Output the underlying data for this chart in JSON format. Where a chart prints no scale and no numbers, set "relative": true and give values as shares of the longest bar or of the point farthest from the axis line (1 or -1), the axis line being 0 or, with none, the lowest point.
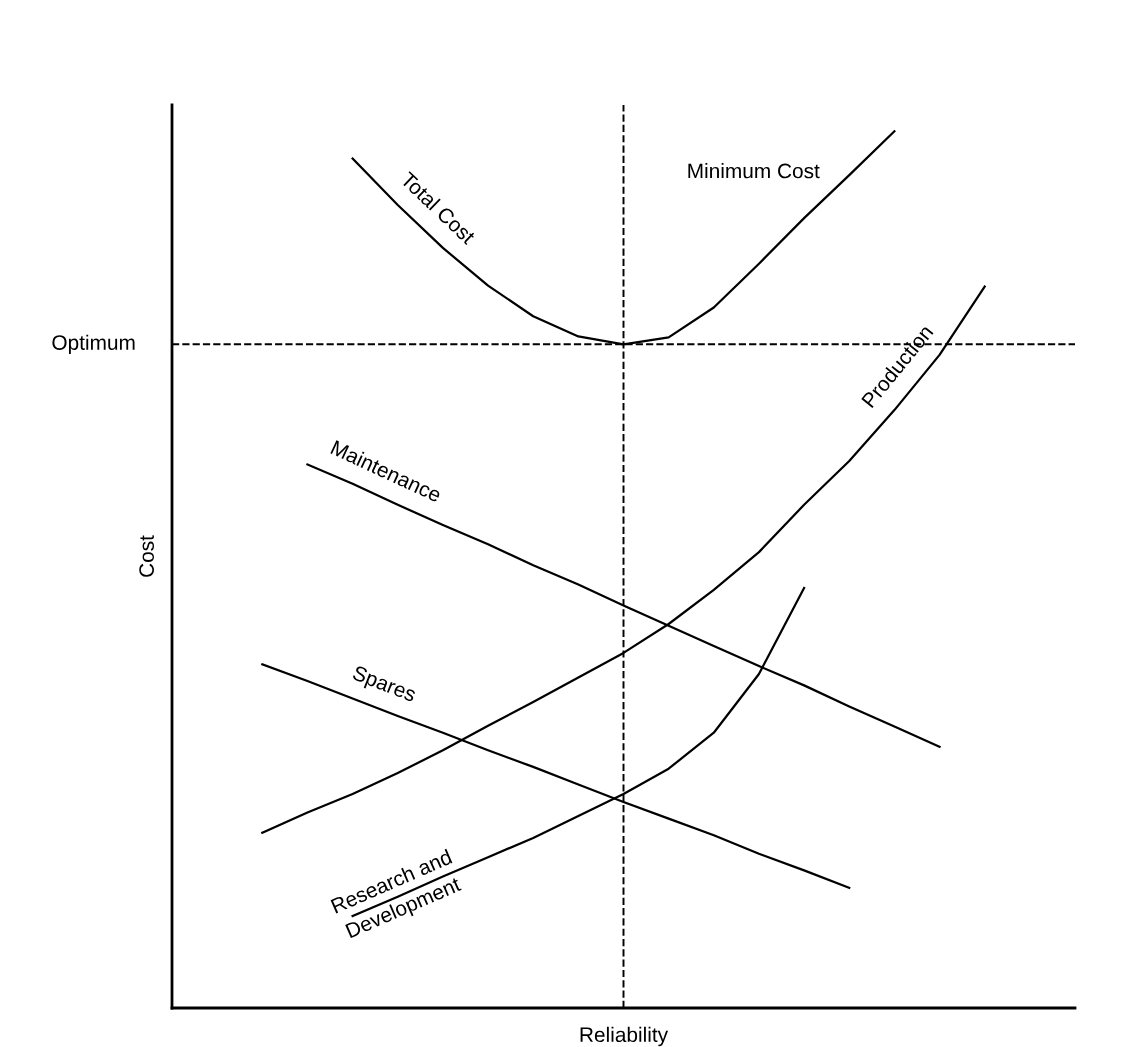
{
  "chart_data": {
    "type": "line",
    "relative": true,
    "xlabel": "Reliability",
    "ylabel": "Cost",
    "legend": false,
    "line_style": "solid",
    "marker": "none",
    "categories": [
      null,
      null,
      null,
      null,
      null,
      null,
      null,
      null,
      null,
      null,
      null,
      null,
      null,
      null,
      null,
      null,
      null
    ],
    "series": [
      {
        "name": "Total Cost",
        "color": "#000000",
        "values": [
          null,
          null,
          0.969,
          0.916,
          0.867,
          0.824,
          0.789,
          0.766,
          0.757,
          0.765,
          0.799,
          0.849,
          0.901,
          0.95,
          1.0,
          null,
          null
        ]
      },
      {
        "name": "Maintenance",
        "color": "#000000",
        "values": [
          null,
          0.62,
          0.598,
          0.574,
          0.551,
          0.529,
          0.505,
          0.483,
          0.459,
          0.436,
          0.413,
          0.39,
          0.368,
          0.344,
          0.321,
          0.298,
          null
        ]
      },
      {
        "name": "Production",
        "color": "#000000",
        "values": [
          0.2,
          0.223,
          0.244,
          0.268,
          0.294,
          0.322,
          0.349,
          0.377,
          0.405,
          0.438,
          0.477,
          0.52,
          0.574,
          0.624,
          0.682,
          0.745,
          0.823
        ]
      },
      {
        "name": "Spares",
        "color": "#000000",
        "values": [
          0.392,
          0.373,
          0.353,
          0.333,
          0.314,
          0.294,
          0.275,
          0.255,
          0.235,
          0.216,
          0.197,
          0.176,
          0.157,
          0.137,
          null,
          null,
          null
        ]
      },
      {
        "name": "Research and\nDevelopment",
        "color": "#000000",
        "values": [
          null,
          null,
          0.105,
          0.127,
          0.15,
          0.172,
          0.194,
          0.219,
          0.244,
          0.273,
          0.314,
          0.381,
          0.479,
          null,
          null,
          null,
          null
        ]
      }
    ],
    "ref_lines": [
      {
        "axis": "y",
        "value": 0.757,
        "label": "Optimum",
        "color": "#000000",
        "line_style": "dashed"
      }
    ],
    "annotations": [
      "Minimum Cost"
    ]
  }
}
